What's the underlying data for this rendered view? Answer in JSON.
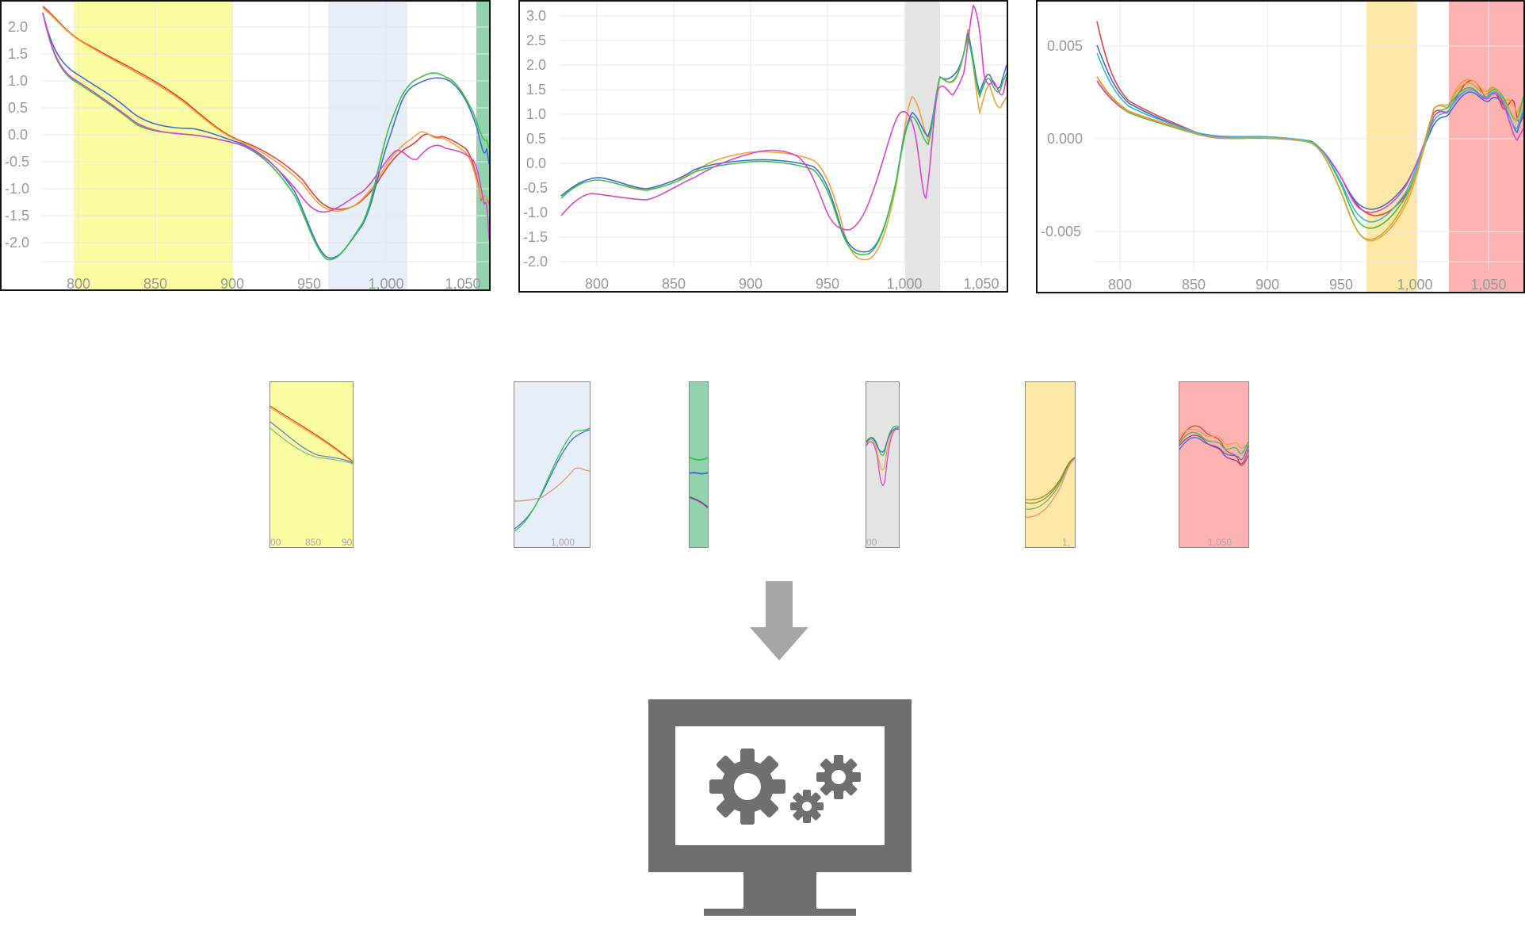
{
  "charts": [
    {
      "id": "chart1",
      "x_ticks": [
        "800",
        "850",
        "900",
        "950",
        "1,000",
        "1,050"
      ],
      "y_ticks": [
        "2.0",
        "1.5",
        "1.0",
        "0.5",
        "0.0",
        "-0.5",
        "-1.0",
        "-1.5",
        "-2.0"
      ],
      "bands": [
        {
          "color": "#fbfb9f",
          "range": [
            798,
            900
          ]
        },
        {
          "color": "#e6eef8",
          "range": [
            962,
            1014
          ]
        },
        {
          "color": "#92d3ad",
          "range": [
            1059,
            1068
          ]
        }
      ]
    },
    {
      "id": "chart2",
      "x_ticks": [
        "800",
        "850",
        "900",
        "950",
        "1,000",
        "1,050"
      ],
      "y_ticks": [
        "3.0",
        "2.5",
        "2.0",
        "1.5",
        "1.0",
        "0.5",
        "0.0",
        "-0.5",
        "-1.0",
        "-1.5",
        "-2.0"
      ],
      "bands": [
        {
          "color": "#e4e4e4",
          "range": [
            1001,
            1024
          ]
        }
      ]
    },
    {
      "id": "chart3",
      "x_ticks": [
        "800",
        "850",
        "900",
        "950",
        "1,000",
        "1,050"
      ],
      "y_ticks": [
        "0.005",
        "0.000",
        "-0.005"
      ],
      "bands": [
        {
          "color": "#fde7a7",
          "range": [
            962,
            996
          ]
        },
        {
          "color": "#fdb2b2",
          "range": [
            1017,
            1068
          ]
        }
      ]
    }
  ],
  "crops": [
    {
      "color": "#fbfb9f",
      "tick_labels": [
        "00",
        "850",
        "90"
      ]
    },
    {
      "color": "#e6eef8",
      "tick_labels": [
        "1,000"
      ]
    },
    {
      "color": "#92d3ad",
      "tick_labels": []
    },
    {
      "color": "#e4e4e4",
      "tick_labels": [
        "00"
      ]
    },
    {
      "color": "#fde7a7",
      "tick_labels": [
        "1,"
      ]
    },
    {
      "color": "#fdb2b2",
      "tick_labels": [
        "1,050"
      ]
    }
  ],
  "series_colors": [
    "#e2413f",
    "#f0a338",
    "#3f6fd2",
    "#39c24a",
    "#d946c8",
    "#3fb2d8",
    "#c9a838"
  ],
  "icons": [
    "down-arrow-icon",
    "computer-gears-icon"
  ],
  "icon_color": "#6f6f6f"
}
